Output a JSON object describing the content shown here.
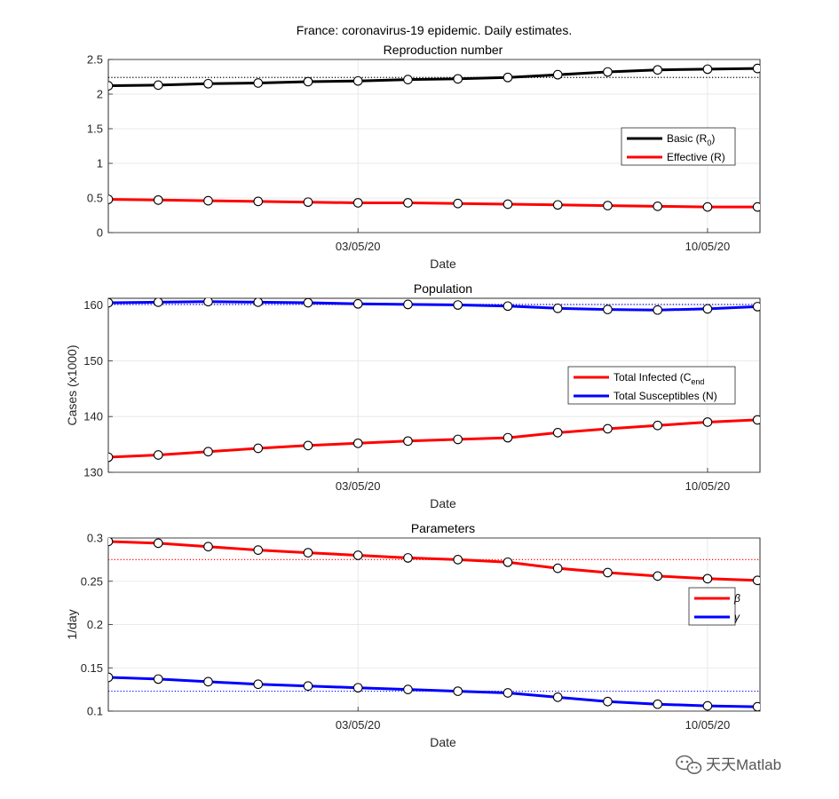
{
  "figure": {
    "suptitle": "France: coronavirus-19 epidemic. Daily estimates."
  },
  "watermark": {
    "text": "天天Matlab",
    "icon": "wechat-icon"
  },
  "chart_data": [
    {
      "type": "line",
      "title": "Reproduction number",
      "xlabel": "Date",
      "ylabel": "",
      "xticks": [
        "03/05/20",
        "10/05/20"
      ],
      "yticks": [
        "0",
        "0.5",
        "1",
        "1.5",
        "2",
        "2.5"
      ],
      "ylim": [
        0,
        2.5
      ],
      "legend_position": "right",
      "grid": true,
      "x": [
        "28/04/20",
        "29/04/20",
        "30/04/20",
        "01/05/20",
        "02/05/20",
        "03/05/20",
        "04/05/20",
        "05/05/20",
        "06/05/20",
        "07/05/20",
        "08/05/20",
        "09/05/20",
        "10/05/20",
        "11/05/20"
      ],
      "series": [
        {
          "name": "Basic (R0)",
          "label_main": "Basic (R",
          "label_sub": "0",
          "label_end": ")",
          "color": "#000000",
          "values": [
            2.12,
            2.13,
            2.15,
            2.16,
            2.18,
            2.19,
            2.21,
            2.22,
            2.24,
            2.28,
            2.32,
            2.35,
            2.36,
            2.37
          ],
          "mean_line": 2.24
        },
        {
          "name": "Effective (R)",
          "label_main": "Effective (R)",
          "label_sub": "",
          "label_end": "",
          "color": "#ff0000",
          "values": [
            0.48,
            0.47,
            0.46,
            0.45,
            0.44,
            0.43,
            0.43,
            0.42,
            0.41,
            0.4,
            0.39,
            0.38,
            0.37,
            0.37
          ]
        }
      ]
    },
    {
      "type": "line",
      "title": "Population",
      "xlabel": "Date",
      "ylabel": "Cases (x1000)",
      "xticks": [
        "03/05/20",
        "10/05/20"
      ],
      "yticks": [
        "130",
        "140",
        "150",
        "160"
      ],
      "ylim": [
        130,
        161.2
      ],
      "legend_position": "right",
      "grid": true,
      "x": [
        "28/04/20",
        "29/04/20",
        "30/04/20",
        "01/05/20",
        "02/05/20",
        "03/05/20",
        "04/05/20",
        "05/05/20",
        "06/05/20",
        "07/05/20",
        "08/05/20",
        "09/05/20",
        "10/05/20",
        "11/05/20"
      ],
      "series": [
        {
          "name": "Total Infected (Cend",
          "label_main": "Total Infected (C",
          "label_sub": "end",
          "label_end": "",
          "color": "#ff0000",
          "values": [
            132.7,
            133.1,
            133.7,
            134.3,
            134.8,
            135.2,
            135.6,
            135.9,
            136.2,
            137.1,
            137.8,
            138.4,
            139.0,
            139.4
          ]
        },
        {
          "name": "Total Susceptibles (N)",
          "label_main": "Total Susceptibles (N)",
          "label_sub": "",
          "label_end": "",
          "color": "#0000ff",
          "values": [
            160.4,
            160.5,
            160.6,
            160.5,
            160.4,
            160.2,
            160.1,
            160.0,
            159.8,
            159.4,
            159.2,
            159.1,
            159.3,
            159.7
          ],
          "mean_line": 160.1
        }
      ]
    },
    {
      "type": "line",
      "title": "Parameters",
      "xlabel": "Date",
      "ylabel": "1/day",
      "xticks": [
        "03/05/20",
        "10/05/20"
      ],
      "yticks": [
        "0.1",
        "0.15",
        "0.2",
        "0.25",
        "0.3"
      ],
      "ylim": [
        0.1,
        0.3
      ],
      "legend_position": "right",
      "grid": true,
      "x": [
        "28/04/20",
        "29/04/20",
        "30/04/20",
        "01/05/20",
        "02/05/20",
        "03/05/20",
        "04/05/20",
        "05/05/20",
        "06/05/20",
        "07/05/20",
        "08/05/20",
        "09/05/20",
        "10/05/20",
        "11/05/20"
      ],
      "series": [
        {
          "name": "β",
          "label_main": "β",
          "label_sub": "",
          "label_end": "",
          "color": "#ff0000",
          "values": [
            0.296,
            0.294,
            0.29,
            0.286,
            0.283,
            0.28,
            0.277,
            0.275,
            0.272,
            0.265,
            0.26,
            0.256,
            0.253,
            0.251
          ],
          "mean_line": 0.275
        },
        {
          "name": "γ",
          "label_main": "γ",
          "label_sub": "",
          "label_end": "",
          "color": "#0000ff",
          "values": [
            0.139,
            0.137,
            0.134,
            0.131,
            0.129,
            0.127,
            0.125,
            0.123,
            0.121,
            0.116,
            0.111,
            0.108,
            0.106,
            0.105
          ],
          "mean_line": 0.123
        }
      ]
    }
  ]
}
